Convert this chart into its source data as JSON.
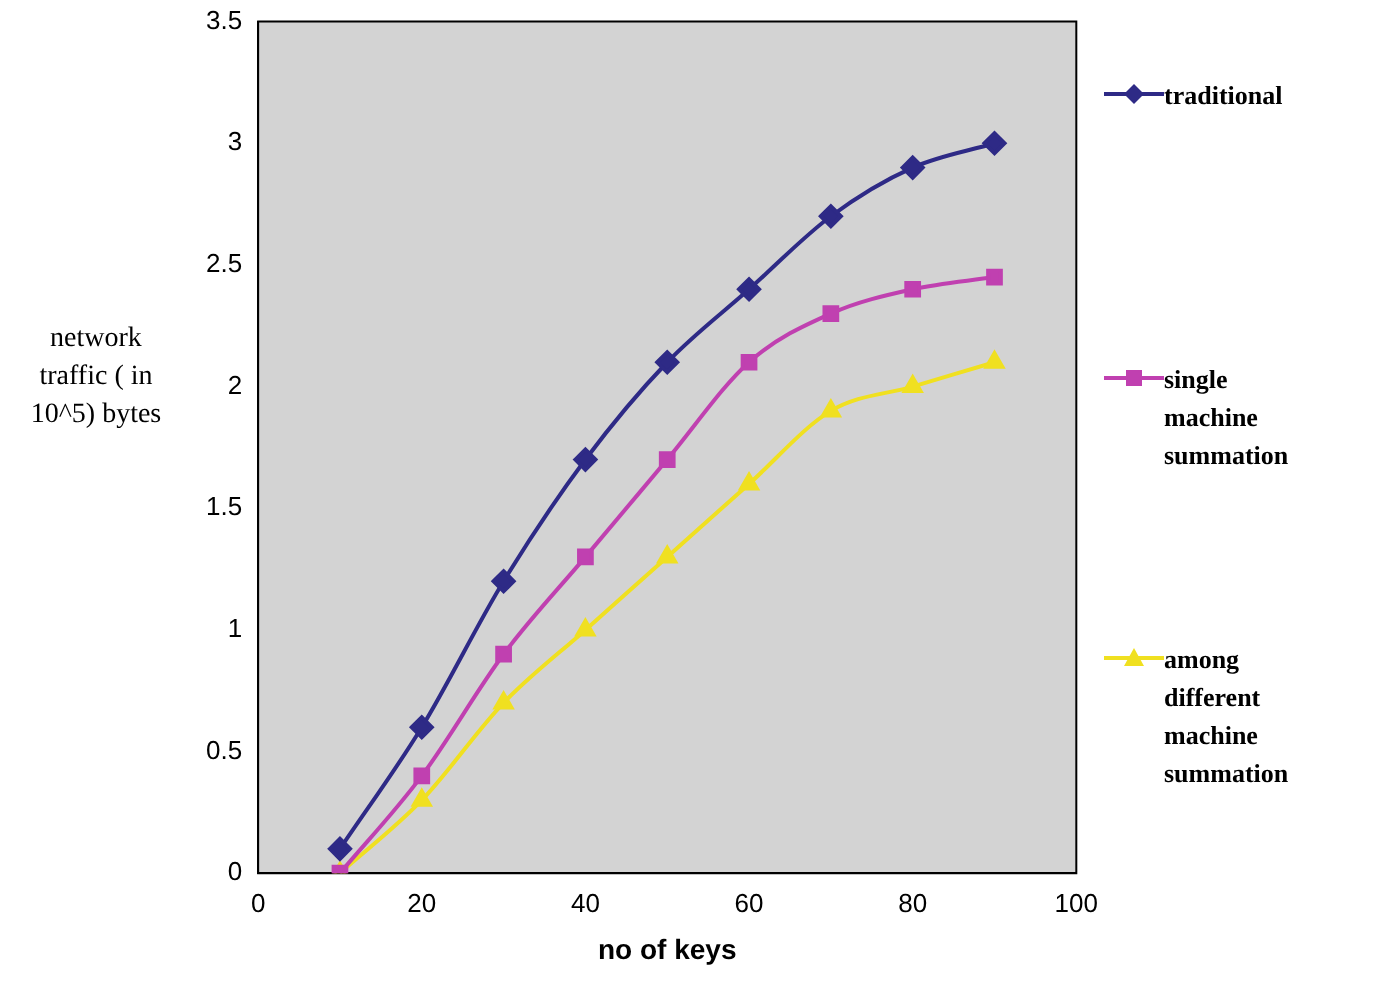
{
  "chart_data": {
    "type": "line",
    "xlabel": "no of keys",
    "ylabel": "network traffic ( in 10^5) bytes",
    "x": [
      10,
      20,
      30,
      40,
      50,
      60,
      70,
      80,
      90
    ],
    "series": [
      {
        "name": "traditional",
        "color": "#2e2a86",
        "marker": "diamond",
        "values": [
          0.1,
          0.6,
          1.2,
          1.7,
          2.1,
          2.4,
          2.7,
          2.9,
          3.0
        ]
      },
      {
        "name": "single machine summation",
        "color": "#c040b0",
        "marker": "square",
        "values": [
          0.0,
          0.4,
          0.9,
          1.3,
          1.7,
          2.1,
          2.3,
          2.4,
          2.45
        ]
      },
      {
        "name": "among different machine summation",
        "color": "#f0e020",
        "marker": "triangle",
        "values": [
          0.0,
          0.3,
          0.7,
          1.0,
          1.3,
          1.6,
          1.9,
          2.0,
          2.1
        ]
      }
    ],
    "xlim": [
      0,
      100
    ],
    "xticks": [
      0,
      20,
      40,
      60,
      80,
      100
    ],
    "ylim": [
      0,
      3.5
    ],
    "yticks": [
      0,
      0.5,
      1,
      1.5,
      2,
      2.5,
      3,
      3.5
    ],
    "grid": false,
    "legend": "right",
    "line_style": "solid"
  }
}
